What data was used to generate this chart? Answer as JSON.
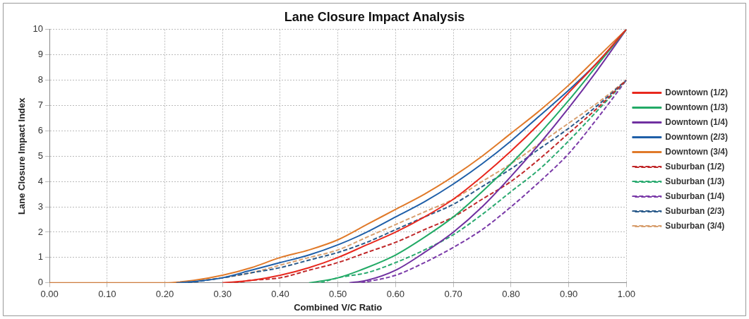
{
  "chart_data": {
    "type": "line",
    "title": "Lane Closure Impact Analysis",
    "xlabel": "Combined V/C Ratio",
    "ylabel": "Lane Closure Impact Index",
    "series": [
      {
        "name": "Downtown (1/2)",
        "color": "#e8281e",
        "line_style": "solid",
        "x": [
          0.3,
          0.35,
          0.4,
          0.45,
          0.5,
          0.55,
          0.6,
          0.65,
          0.7,
          0.75,
          0.8,
          0.85,
          0.9,
          0.95,
          1
        ],
        "values": [
          0,
          0.1,
          0.3,
          0.6,
          1.0,
          1.5,
          2.0,
          2.6,
          3.3,
          4.2,
          5.2,
          6.3,
          7.5,
          8.7,
          10
        ]
      },
      {
        "name": "Downtown (1/3)",
        "color": "#22aa66",
        "line_style": "solid",
        "x": [
          0.45,
          0.5,
          0.55,
          0.6,
          0.65,
          0.7,
          0.75,
          0.8,
          0.85,
          0.9,
          0.95,
          1
        ],
        "values": [
          0,
          0.2,
          0.6,
          1.1,
          1.8,
          2.6,
          3.6,
          4.7,
          5.9,
          7.2,
          8.6,
          10
        ]
      },
      {
        "name": "Downtown (1/4)",
        "color": "#7030a0",
        "line_style": "solid",
        "x": [
          0.52,
          0.55,
          0.6,
          0.65,
          0.7,
          0.75,
          0.8,
          0.85,
          0.9,
          0.95,
          1
        ],
        "values": [
          0,
          0.1,
          0.5,
          1.2,
          2.0,
          3.0,
          4.2,
          5.5,
          6.9,
          8.4,
          10
        ]
      },
      {
        "name": "Downtown (2/3)",
        "color": "#1f5fa8",
        "line_style": "solid",
        "x": [
          0.22,
          0.25,
          0.3,
          0.35,
          0.4,
          0.45,
          0.5,
          0.55,
          0.6,
          0.65,
          0.7,
          0.75,
          0.8,
          0.85,
          0.9,
          0.95,
          1
        ],
        "values": [
          0,
          0.05,
          0.2,
          0.5,
          0.8,
          1.1,
          1.5,
          2.0,
          2.6,
          3.2,
          3.9,
          4.7,
          5.6,
          6.6,
          7.6,
          8.7,
          10
        ]
      },
      {
        "name": "Downtown (3/4)",
        "color": "#e07a2a",
        "line_style": "solid",
        "x": [
          0,
          0.05,
          0.1,
          0.15,
          0.2,
          0.25,
          0.3,
          0.35,
          0.4,
          0.45,
          0.5,
          0.55,
          0.6,
          0.65,
          0.7,
          0.75,
          0.8,
          0.85,
          0.9,
          0.95,
          1
        ],
        "values": [
          0,
          0,
          0,
          0,
          0,
          0.1,
          0.3,
          0.6,
          1.0,
          1.3,
          1.7,
          2.3,
          2.9,
          3.5,
          4.2,
          5.0,
          5.9,
          6.8,
          7.8,
          8.9,
          10
        ]
      },
      {
        "name": "Suburban (1/2)",
        "color": "#c0282a",
        "line_style": "dashed",
        "x": [
          0.32,
          0.35,
          0.4,
          0.45,
          0.5,
          0.55,
          0.6,
          0.65,
          0.7,
          0.75,
          0.8,
          0.85,
          0.9,
          0.95,
          1
        ],
        "values": [
          0,
          0.1,
          0.2,
          0.5,
          0.8,
          1.2,
          1.6,
          2.1,
          2.6,
          3.3,
          4.0,
          4.9,
          5.9,
          6.9,
          8
        ]
      },
      {
        "name": "Suburban (1/3)",
        "color": "#2aaa70",
        "line_style": "dashed",
        "x": [
          0.47,
          0.5,
          0.55,
          0.6,
          0.65,
          0.7,
          0.75,
          0.8,
          0.85,
          0.9,
          0.95,
          1
        ],
        "values": [
          0,
          0.2,
          0.4,
          0.8,
          1.3,
          1.9,
          2.7,
          3.6,
          4.5,
          5.6,
          6.8,
          8
        ]
      },
      {
        "name": "Suburban (1/4)",
        "color": "#7a3aa8",
        "line_style": "dashed",
        "x": [
          0.54,
          0.6,
          0.65,
          0.7,
          0.75,
          0.8,
          0.85,
          0.9,
          0.95,
          1
        ],
        "values": [
          0,
          0.3,
          0.8,
          1.4,
          2.1,
          3.0,
          4.0,
          5.1,
          6.5,
          8
        ]
      },
      {
        "name": "Suburban (2/3)",
        "color": "#2a5a8a",
        "line_style": "dashed",
        "x": [
          0.24,
          0.3,
          0.35,
          0.4,
          0.45,
          0.5,
          0.55,
          0.6,
          0.65,
          0.7,
          0.75,
          0.8,
          0.85,
          0.9,
          0.95,
          1
        ],
        "values": [
          0,
          0.2,
          0.4,
          0.6,
          0.9,
          1.2,
          1.6,
          2.1,
          2.6,
          3.1,
          3.8,
          4.5,
          5.3,
          6.1,
          7.0,
          8
        ]
      },
      {
        "name": "Suburban (3/4)",
        "color": "#d8a070",
        "line_style": "dashed",
        "x": [
          0.26,
          0.3,
          0.35,
          0.4,
          0.45,
          0.5,
          0.55,
          0.6,
          0.65,
          0.7,
          0.75,
          0.8,
          0.85,
          0.9,
          0.95,
          1
        ],
        "values": [
          0.1,
          0.2,
          0.4,
          0.7,
          1.0,
          1.3,
          1.8,
          2.3,
          2.8,
          3.3,
          4.0,
          4.7,
          5.5,
          6.3,
          7.1,
          8
        ]
      }
    ],
    "xlim": [
      0,
      1
    ],
    "xticks": [
      {
        "value": 0,
        "label": "0.00"
      },
      {
        "value": 0.1,
        "label": "0.10"
      },
      {
        "value": 0.2,
        "label": "0.20"
      },
      {
        "value": 0.3,
        "label": "0.30"
      },
      {
        "value": 0.4,
        "label": "0.40"
      },
      {
        "value": 0.5,
        "label": "0.50"
      },
      {
        "value": 0.6,
        "label": "0.60"
      },
      {
        "value": 0.7,
        "label": "0.70"
      },
      {
        "value": 0.8,
        "label": "0.80"
      },
      {
        "value": 0.9,
        "label": "0.90"
      },
      {
        "value": 1,
        "label": "1.00"
      }
    ],
    "ylim": [
      0,
      10
    ],
    "yticks": [
      0,
      1,
      2,
      3,
      4,
      5,
      6,
      7,
      8,
      9,
      10
    ],
    "grid": true,
    "legend": "right",
    "marker": "none"
  }
}
